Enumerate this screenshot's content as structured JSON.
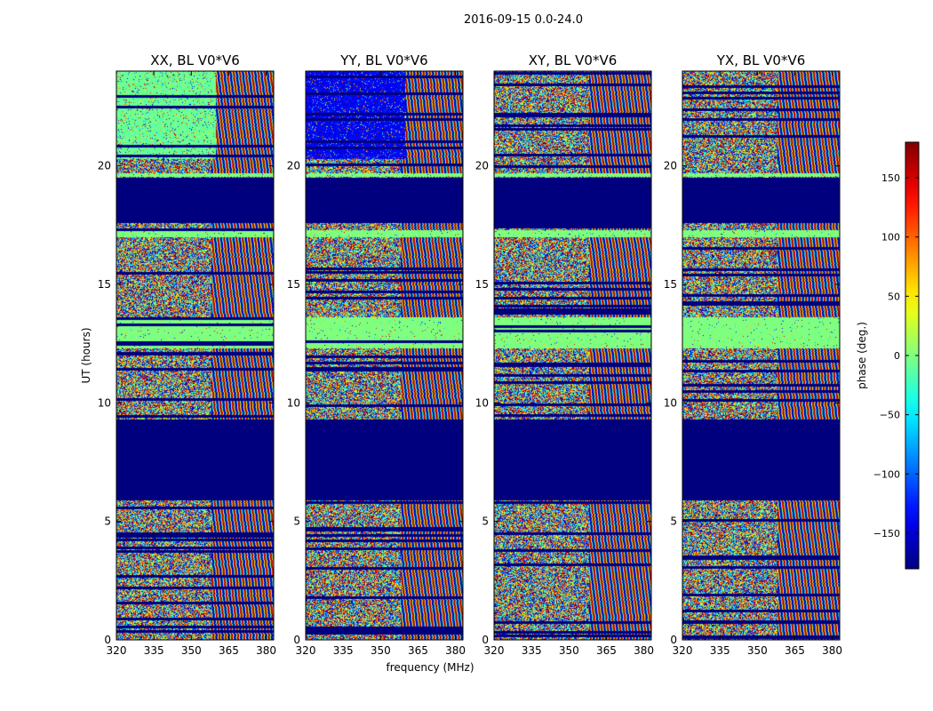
{
  "suptitle": "2016-09-15 0.0-24.0",
  "chart_data": {
    "type": "heatmap",
    "panels": [
      {
        "title": "XX, BL V0*V6",
        "seed": 11
      },
      {
        "title": "YY, BL V0*V6",
        "seed": 23
      },
      {
        "title": "XY, BL V0*V6",
        "seed": 37
      },
      {
        "title": "YX, BL V0*V6",
        "seed": 53
      }
    ],
    "xlabel": "frequency (MHz)",
    "ylabel": "UT (hours)",
    "xlim": [
      320,
      383
    ],
    "ylim": [
      0,
      24
    ],
    "xticks": [
      320,
      335,
      350,
      365,
      380
    ],
    "yticks": [
      0,
      5,
      10,
      15,
      20
    ],
    "colorbar": {
      "label": "phase (deg.)",
      "range": [
        -180,
        180
      ],
      "ticks": [
        150,
        100,
        50,
        0,
        -50,
        -100,
        -150
      ],
      "colormap": "jet"
    },
    "masked_ut_ranges": [
      [
        5.9,
        9.3
      ],
      [
        17.6,
        19.5
      ]
    ],
    "flag_color": "#00007f",
    "flat_phase_color": "#7fff7f"
  }
}
